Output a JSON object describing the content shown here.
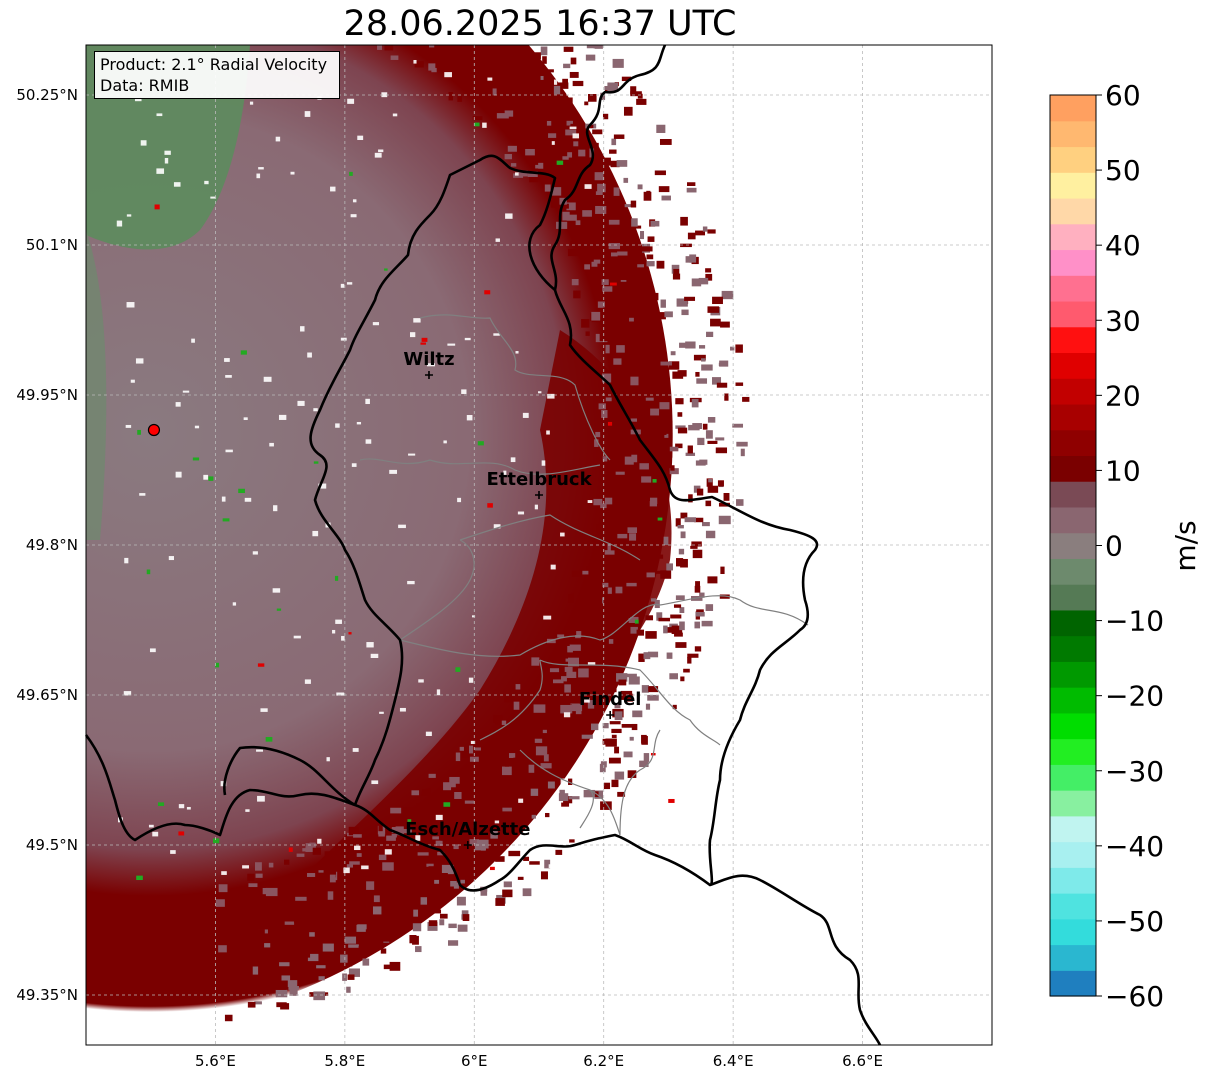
{
  "title": "28.06.2025 16:37 UTC",
  "info": {
    "product": "Product: 2.1° Radial Velocity",
    "data": "Data: RMIB"
  },
  "axes": {
    "lon_ticks": [
      "5.6°E",
      "5.8°E",
      "6°E",
      "6.2°E",
      "6.4°E",
      "6.6°E"
    ],
    "lat_ticks": [
      "50.25°N",
      "50.1°N",
      "49.95°N",
      "49.8°N",
      "49.65°N",
      "49.5°N",
      "49.35°N"
    ],
    "lon_range": [
      5.4,
      6.8
    ],
    "lat_range": [
      49.3,
      50.3
    ],
    "grid": true
  },
  "cities": [
    {
      "name": "Wiltz",
      "lon": 5.93,
      "lat": 49.97
    },
    {
      "name": "Ettelbruck",
      "lon": 6.1,
      "lat": 49.85
    },
    {
      "name": "Findel",
      "lon": 6.21,
      "lat": 49.63
    },
    {
      "name": "Esch/Alzette",
      "lon": 5.99,
      "lat": 49.5
    }
  ],
  "radar_site": {
    "lon": 5.505,
    "lat": 49.915
  },
  "colorbar": {
    "label": "m/s",
    "ticks": [
      "60",
      "50",
      "40",
      "30",
      "20",
      "10",
      "0",
      "−10",
      "−20",
      "−30",
      "−40",
      "−50",
      "−60"
    ],
    "range": [
      -60,
      60
    ],
    "stops": [
      "#1f7fbf",
      "#2ab7d0",
      "#33dcdc",
      "#4fe3e0",
      "#7eeaea",
      "#a8f0f0",
      "#c0f4f0",
      "#88f0a0",
      "#44ee66",
      "#22ee22",
      "#00dd00",
      "#00bb00",
      "#009900",
      "#007a00",
      "#006400",
      "#557a55",
      "#6d8a6d",
      "#8a7e7e",
      "#8a6670",
      "#7a4a55",
      "#7a0000",
      "#8f0000",
      "#a80000",
      "#c20000",
      "#e00000",
      "#ff1010",
      "#ff5a6e",
      "#ff7090",
      "#ff90c8",
      "#ffb0c0",
      "#ffd8a8",
      "#fff0a0",
      "#ffd080",
      "#ffb870",
      "#ffa060"
    ]
  },
  "colors": {
    "border_country": "#000000",
    "border_canton": "#808080",
    "grid": "#bbbbbb",
    "inbound_far": "#8a6e78",
    "inbound_near": "#7a0000",
    "outbound": "#5f8a5f"
  }
}
